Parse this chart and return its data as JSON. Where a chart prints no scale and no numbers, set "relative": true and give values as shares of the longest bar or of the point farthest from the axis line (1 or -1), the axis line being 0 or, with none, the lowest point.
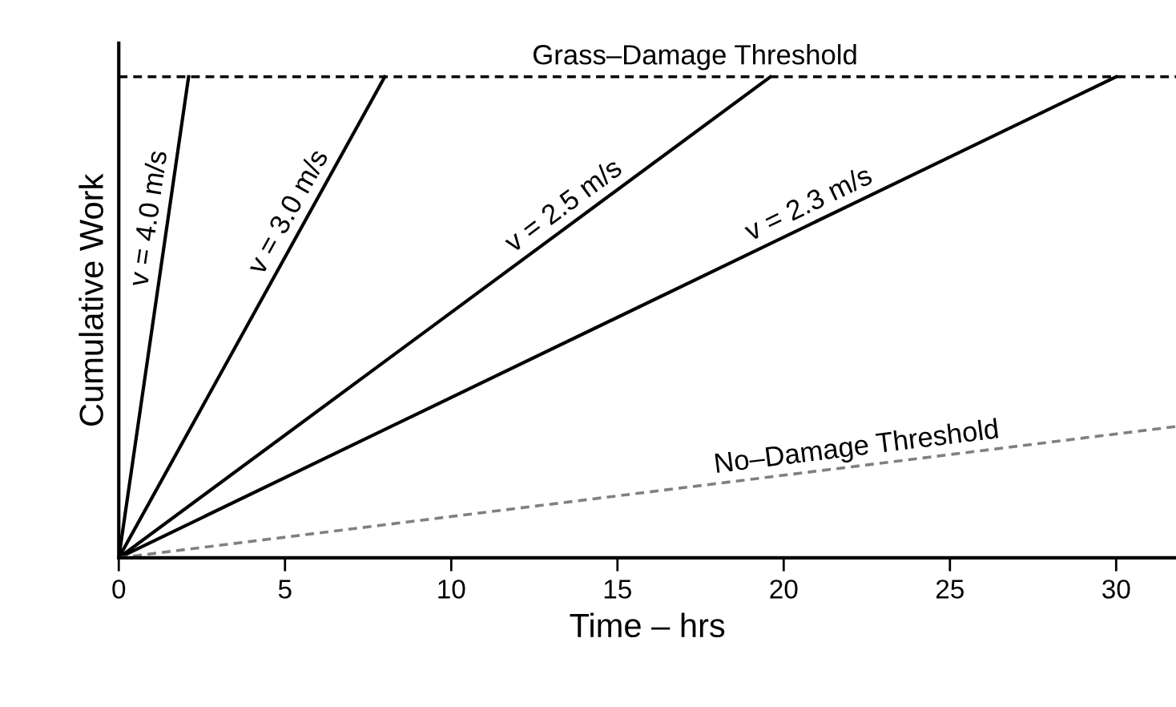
{
  "chart_data": {
    "type": "line",
    "relative": true,
    "xlabel": "Time – hrs",
    "ylabel": "Cumulative Work",
    "xlim": [
      0,
      31.8
    ],
    "xticks": [
      0,
      5,
      10,
      15,
      20,
      25,
      30
    ],
    "grid": false,
    "legend": false,
    "marker": "none",
    "series": [
      {
        "name": "v = 4.0 m/s",
        "color": "#000000",
        "line_style": "solid",
        "x": [
          0,
          2.1
        ],
        "values": [
          0,
          1
        ]
      },
      {
        "name": "v = 3.0 m/s",
        "color": "#000000",
        "line_style": "solid",
        "x": [
          0,
          8.0
        ],
        "values": [
          0,
          1
        ]
      },
      {
        "name": "v = 2.5 m/s",
        "color": "#000000",
        "line_style": "solid",
        "x": [
          0,
          19.6
        ],
        "values": [
          0,
          1
        ]
      },
      {
        "name": "v = 2.3 m/s",
        "color": "#000000",
        "line_style": "solid",
        "x": [
          0,
          30.0
        ],
        "values": [
          0,
          1
        ]
      },
      {
        "name": "No–Damage Threshold",
        "color": "#808080",
        "line_style": "dashed",
        "x": [
          0,
          31.8
        ],
        "values": [
          0,
          0.273
        ]
      }
    ],
    "ref_lines": [
      {
        "axis": "y",
        "value": 1,
        "label": "Grass–Damage Threshold",
        "color": "#000000",
        "line_style": "dashed"
      }
    ]
  }
}
